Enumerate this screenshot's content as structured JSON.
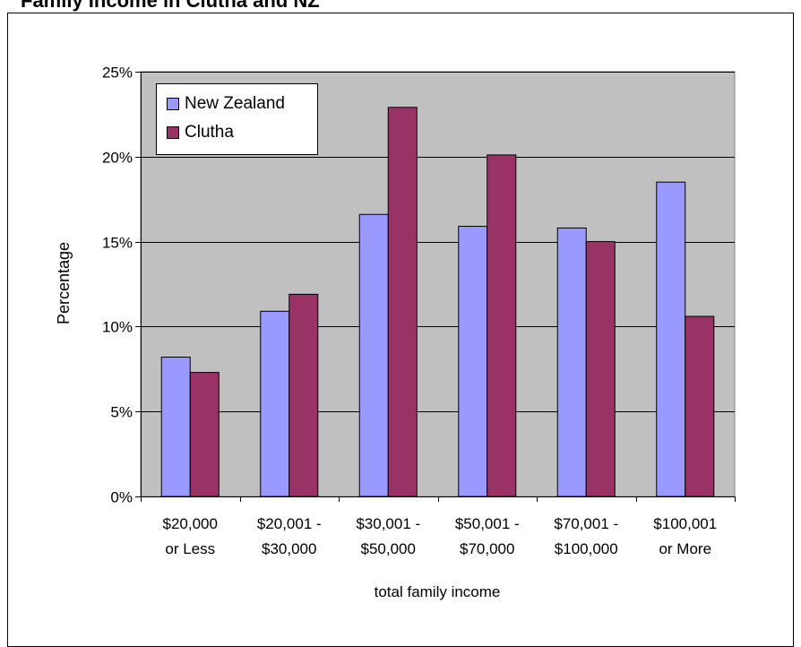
{
  "chart_data": {
    "type": "bar",
    "title": "Family Income in Clutha and NZ",
    "xlabel": "total family income",
    "ylabel": "Percentage",
    "ylim": [
      0,
      25
    ],
    "yticks": [
      "0%",
      "5%",
      "10%",
      "15%",
      "20%",
      "25%"
    ],
    "categories": [
      [
        "$20,000",
        "or Less"
      ],
      [
        "$20,001 -",
        "$30,000"
      ],
      [
        "$30,001 -",
        "$50,000"
      ],
      [
        "$50,001 -",
        "$70,000"
      ],
      [
        "$70,001 -",
        "$100,000"
      ],
      [
        "$100,001",
        "or More"
      ]
    ],
    "series": [
      {
        "name": "New Zealand",
        "color": "#9999ff",
        "values": [
          8.2,
          10.9,
          16.6,
          15.9,
          15.8,
          18.5
        ]
      },
      {
        "name": "Clutha",
        "color": "#993366",
        "values": [
          7.3,
          11.9,
          22.9,
          20.1,
          15.0,
          10.6
        ]
      }
    ],
    "plot_background": "#c0c0c0",
    "grid": true,
    "legend_position": "top-left"
  }
}
